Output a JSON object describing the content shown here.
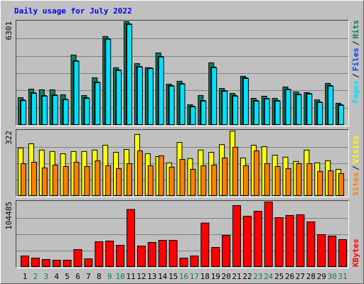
{
  "title": "Daily usage for July 2022",
  "legend_separator": "/",
  "chart_data": [
    {
      "type": "bar",
      "grid": true,
      "ylim": [
        0,
        6301
      ],
      "yticks": [
        6301
      ],
      "series": [
        {
          "name": "Hits",
          "color": "#00805c",
          "values": [
            1683,
            2200,
            2160,
            2160,
            1860,
            4270,
            1810,
            2890,
            5400,
            3500,
            6301,
            3750,
            3500,
            4400,
            2500,
            2680,
            1250,
            1810,
            3800,
            2240,
            1940,
            2980,
            1640,
            1770,
            1640,
            2330,
            2030,
            1990,
            1550,
            2550,
            1340
          ]
        },
        {
          "name": "Files",
          "color": "#0040ff",
          "values": [
            1540,
            1980,
            1810,
            1850,
            1590,
            3930,
            1680,
            2630,
            5270,
            3370,
            6170,
            3580,
            3490,
            4190,
            2420,
            2540,
            1160,
            1510,
            3540,
            2110,
            1810,
            2890,
            1510,
            1640,
            1510,
            2200,
            1900,
            1940,
            1420,
            2420,
            1250
          ]
        },
        {
          "name": "Pages",
          "color": "#00e0ff",
          "values": [
            1500,
            1940,
            1770,
            1810,
            1550,
            3890,
            1640,
            2590,
            5230,
            3330,
            6130,
            3540,
            3450,
            4150,
            2380,
            2500,
            1120,
            1470,
            3500,
            2070,
            1770,
            2850,
            1470,
            1600,
            1470,
            2160,
            1860,
            1900,
            1380,
            2380,
            1210
          ]
        }
      ]
    },
    {
      "type": "bar",
      "grid": true,
      "ylim": [
        0,
        322
      ],
      "yticks": [
        322
      ],
      "series": [
        {
          "name": "Visits",
          "color": "#ffff00",
          "values": [
            238,
            259,
            228,
            221,
            210,
            221,
            221,
            228,
            252,
            217,
            231,
            305,
            210,
            196,
            165,
            266,
            186,
            228,
            217,
            255,
            322,
            189,
            252,
            245,
            203,
            193,
            172,
            228,
            165,
            175,
            133
          ]
        },
        {
          "name": "Sites",
          "color": "#ff8000",
          "values": [
            161,
            168,
            140,
            154,
            147,
            168,
            147,
            175,
            151,
            137,
            161,
            224,
            151,
            200,
            144,
            182,
            133,
            151,
            154,
            189,
            242,
            151,
            224,
            161,
            147,
            137,
            161,
            161,
            123,
            126,
            112
          ]
        }
      ]
    },
    {
      "type": "bar",
      "grid": true,
      "ylim": [
        0,
        104485
      ],
      "yticks": [
        104485
      ],
      "categories": [
        "1",
        "2",
        "3",
        "4",
        "5",
        "6",
        "7",
        "8",
        "9",
        "10",
        "11",
        "12",
        "13",
        "14",
        "15",
        "16",
        "17",
        "18",
        "19",
        "20",
        "21",
        "22",
        "23",
        "24",
        "25",
        "26",
        "27",
        "28",
        "29",
        "30",
        "31"
      ],
      "category_colors": [
        "#000000",
        "#00805c",
        "#00805c",
        "#000000",
        "#000000",
        "#000000",
        "#000000",
        "#000000",
        "#00805c",
        "#00805c",
        "#000000",
        "#000000",
        "#000000",
        "#000000",
        "#000000",
        "#00805c",
        "#00805c",
        "#000000",
        "#000000",
        "#000000",
        "#000000",
        "#000000",
        "#00805c",
        "#00805c",
        "#000000",
        "#000000",
        "#000000",
        "#000000",
        "#000000",
        "#00805c",
        "#00805c"
      ],
      "series": [
        {
          "name": "KBytes",
          "color": "#ff0000",
          "values": [
            18200,
            14800,
            12500,
            11400,
            11400,
            28400,
            13600,
            40900,
            42000,
            35200,
            92500,
            34100,
            39800,
            43200,
            43200,
            14800,
            18200,
            70800,
            31800,
            51100,
            98800,
            81800,
            89700,
            104485,
            79500,
            83000,
            84100,
            72700,
            52300,
            50000,
            44300
          ]
        }
      ]
    }
  ]
}
